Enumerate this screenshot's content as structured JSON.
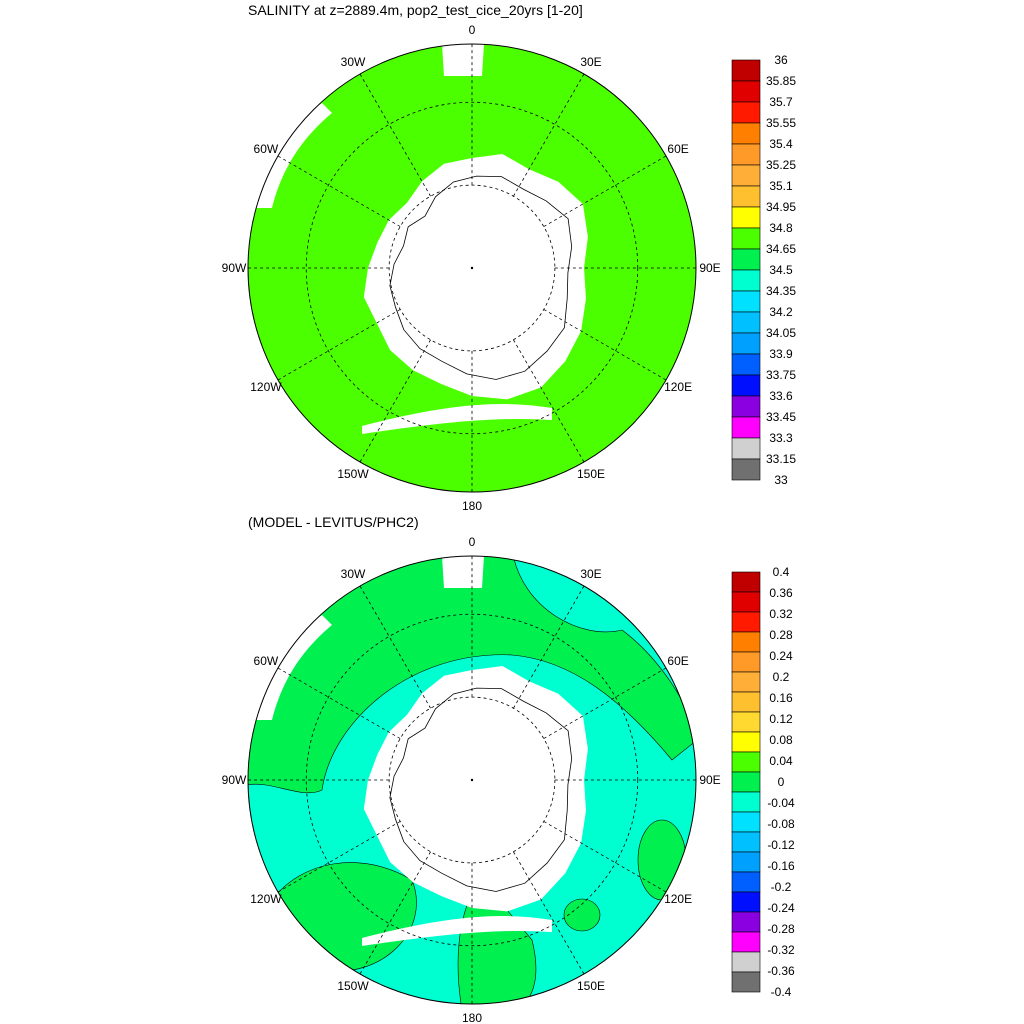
{
  "chart_data": [
    {
      "type": "polar-map",
      "title": "SALINITY at z=2889.4m, pop2_test_cice_20yrs [1-20]",
      "lon_labels": [
        "0",
        "30E",
        "60E",
        "90E",
        "120E",
        "150E",
        "180",
        "150W",
        "120W",
        "90W",
        "60W",
        "30W"
      ],
      "colorbar": {
        "levels": [
          "36",
          "35.85",
          "35.7",
          "35.55",
          "35.4",
          "35.25",
          "35.1",
          "34.95",
          "34.8",
          "34.65",
          "34.5",
          "34.35",
          "34.2",
          "34.05",
          "33.9",
          "33.75",
          "33.6",
          "33.45",
          "33.3",
          "33.15",
          "33"
        ],
        "colors": [
          "#c00000",
          "#e00000",
          "#ff1a00",
          "#ff8000",
          "#ff9a28",
          "#ffae38",
          "#ffc030",
          "#ffff00",
          "#4cff00",
          "#00f050",
          "#00ffd0",
          "#00e0ff",
          "#00c0ff",
          "#00a0ff",
          "#0060ff",
          "#0010ff",
          "#8a00e0",
          "#ff00ff",
          "#d0d0d0",
          "#707070"
        ]
      },
      "field_color": "#4cff00"
    },
    {
      "type": "polar-map",
      "title": "(MODEL - LEVITUS/PHC2)",
      "lon_labels": [
        "0",
        "30E",
        "60E",
        "90E",
        "120E",
        "150E",
        "180",
        "150W",
        "120W",
        "90W",
        "60W",
        "30W"
      ],
      "colorbar": {
        "levels": [
          "0.4",
          "0.36",
          "0.32",
          "0.28",
          "0.24",
          "0.2",
          "0.16",
          "0.12",
          "0.08",
          "0.04",
          "0",
          "-0.04",
          "-0.08",
          "-0.12",
          "-0.16",
          "-0.2",
          "-0.24",
          "-0.28",
          "-0.32",
          "-0.36",
          "-0.4"
        ],
        "colors": [
          "#c00000",
          "#e00000",
          "#ff1a00",
          "#ff8000",
          "#ff9a28",
          "#ffae38",
          "#ffc030",
          "#ffd830",
          "#ffff00",
          "#4cff00",
          "#00f050",
          "#00ffd0",
          "#00e0ff",
          "#00c0ff",
          "#00a0ff",
          "#0060ff",
          "#0010ff",
          "#8a00e0",
          "#ff00ff",
          "#d0d0d0",
          "#707070"
        ]
      },
      "field_colors": {
        "positive": "#00f050",
        "negative": "#00ffd0"
      }
    }
  ]
}
